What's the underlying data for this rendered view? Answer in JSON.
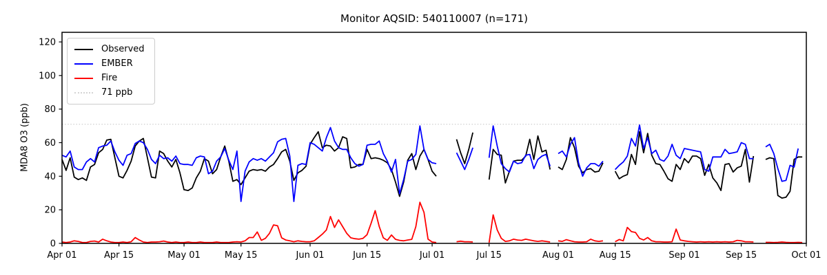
{
  "title": "Monitor AQSID: 540110007 (n=171)",
  "legend": {
    "items": [
      {
        "label": "Observed",
        "color": "#000000",
        "style": "solid"
      },
      {
        "label": "EMBER",
        "color": "#0000ff",
        "style": "solid"
      },
      {
        "label": "Fire",
        "color": "#ff0000",
        "style": "solid"
      },
      {
        "label": "71 ppb",
        "color": "#d3d3d3",
        "style": "dotted"
      }
    ]
  },
  "chart_data": {
    "type": "line",
    "title": "Monitor AQSID: 540110007 (n=171)",
    "xlabel": "",
    "ylabel": "MDA8 O3 (ppb)",
    "ylim": [
      0,
      126
    ],
    "y_ticks": [
      0,
      20,
      40,
      60,
      80,
      100,
      120
    ],
    "x_start_date": "Apr 01",
    "x_end_date": "Sep 30",
    "n_days": 183,
    "n_points": 171,
    "grid": false,
    "legend_position": "upper left",
    "x_ticks": [
      {
        "day": 0,
        "label": "Apr 01"
      },
      {
        "day": 14,
        "label": "Apr 15"
      },
      {
        "day": 30,
        "label": "May 01"
      },
      {
        "day": 44,
        "label": "May 15"
      },
      {
        "day": 61,
        "label": "Jun 01"
      },
      {
        "day": 75,
        "label": "Jun 15"
      },
      {
        "day": 91,
        "label": "Jul 01"
      },
      {
        "day": 105,
        "label": "Jul 15"
      },
      {
        "day": 122,
        "label": "Aug 01"
      },
      {
        "day": 136,
        "label": "Aug 15"
      },
      {
        "day": 153,
        "label": "Sep 01"
      },
      {
        "day": 167,
        "label": "Sep 15"
      },
      {
        "day": 183,
        "label": "Oct 01"
      }
    ],
    "threshold": {
      "value": 71,
      "label": "71 ppb",
      "color": "#d3d3d3",
      "style": "dotted"
    },
    "missing_days": [
      "Jul 03",
      "Jul 04",
      "Jul 05",
      "Jul 06",
      "Jul 12",
      "Jul 13",
      "Jul 14",
      "Jul 31",
      "Aug 13",
      "Aug 14",
      "Sep 19",
      "Sep 20"
    ],
    "series": [
      {
        "name": "Observed",
        "color": "#000000",
        "values": [
          50,
          43.5,
          51,
          39.5,
          38,
          39,
          37.5,
          45.5,
          47,
          54,
          56,
          61.5,
          62,
          51,
          40,
          39,
          43.5,
          49,
          58,
          61,
          62.5,
          51,
          39.5,
          39,
          55,
          53.5,
          49,
          45.5,
          50,
          42,
          32,
          31.5,
          33,
          39,
          43,
          50.5,
          49,
          41.5,
          44,
          51.5,
          58,
          49,
          37,
          38,
          35,
          39,
          43,
          44,
          43.5,
          44,
          43,
          45.5,
          47,
          50.5,
          54.5,
          56,
          49,
          37.5,
          42,
          43.5,
          46,
          59,
          63,
          66.5,
          57,
          58.5,
          58,
          55,
          57,
          63.5,
          62.5,
          45,
          45.5,
          47,
          47,
          56,
          50.5,
          51,
          50.5,
          49.5,
          48,
          44,
          36.5,
          28,
          36.5,
          49.5,
          53.5,
          44,
          52,
          56,
          50,
          43,
          40,
          null,
          null,
          null,
          null,
          62,
          54,
          47.5,
          56,
          66,
          null,
          null,
          null,
          38,
          56,
          53,
          52.5,
          36,
          43,
          49,
          49.5,
          49.5,
          52,
          62,
          50,
          64,
          54.5,
          55.5,
          44,
          null,
          45.5,
          44,
          50,
          63,
          57,
          46,
          42,
          44,
          44.5,
          42.5,
          43,
          48,
          null,
          null,
          43,
          38.5,
          40,
          41,
          53,
          47,
          66.5,
          54,
          65.5,
          52.5,
          47.5,
          47,
          43,
          38.5,
          37,
          47,
          44,
          50.5,
          48,
          52,
          52,
          50.5,
          40.5,
          47,
          39,
          36,
          31.5,
          47,
          47.5,
          42.5,
          45,
          46,
          56,
          36.5,
          52,
          null,
          null,
          50,
          51,
          50.5,
          28.5,
          27,
          27.5,
          31,
          50,
          51.5,
          51.5
        ]
      },
      {
        "name": "EMBER",
        "color": "#0000ff",
        "values": [
          52.5,
          51.5,
          55,
          45.5,
          44,
          44,
          48.5,
          50.5,
          48.5,
          57,
          58,
          58.5,
          61,
          54.5,
          49.5,
          46.5,
          52.5,
          53.5,
          59.5,
          61,
          60,
          56,
          50,
          47.5,
          52.5,
          50.5,
          51,
          49,
          52,
          47.5,
          47,
          47,
          46.5,
          51,
          52,
          51.5,
          41.5,
          43,
          49,
          51.5,
          56.5,
          49.5,
          44,
          55,
          25,
          43,
          48.5,
          50.5,
          49.5,
          50.5,
          49,
          51.5,
          54,
          60.5,
          62,
          62.5,
          52,
          25,
          46.5,
          47.5,
          47,
          60,
          59,
          57,
          55,
          63,
          69,
          61,
          57,
          56,
          56,
          51,
          47.5,
          46,
          47,
          58.5,
          59,
          59,
          61,
          53.5,
          49,
          42.5,
          50,
          29.5,
          38,
          49,
          50,
          53,
          70,
          56,
          50,
          48,
          47.5,
          null,
          null,
          null,
          null,
          54,
          49,
          44,
          50,
          57,
          null,
          null,
          null,
          51,
          70,
          58,
          47.5,
          44.5,
          42.5,
          49,
          47.5,
          48,
          52.5,
          53,
          44.5,
          50,
          52,
          53,
          46,
          null,
          53.5,
          55,
          51.5,
          59,
          63,
          48,
          40,
          45,
          47.5,
          47.5,
          46,
          49,
          null,
          null,
          44,
          46.5,
          48.5,
          52,
          62.5,
          58,
          70.5,
          56.5,
          63,
          53.5,
          55.5,
          50,
          49,
          52,
          59,
          52.5,
          50.5,
          56.5,
          56,
          55.5,
          55,
          54.5,
          44,
          43,
          51.5,
          51.5,
          51.5,
          56,
          53.5,
          54,
          54.5,
          60,
          59,
          50.5,
          50.5,
          null,
          null,
          57.5,
          59,
          53.5,
          44.5,
          37,
          37.5,
          46.5,
          45.5,
          56.5,
          null
        ]
      },
      {
        "name": "Fire",
        "color": "#ff0000",
        "values": [
          0.8,
          0.5,
          0.8,
          1.5,
          1.2,
          0.5,
          0.5,
          1.2,
          1.4,
          0.8,
          2.5,
          1.5,
          0.8,
          0.5,
          0.5,
          0.8,
          0.5,
          1,
          3.5,
          2,
          0.8,
          0.5,
          0.8,
          0.8,
          1,
          1.4,
          0.8,
          0.5,
          0.8,
          0.5,
          0.5,
          0.8,
          0.5,
          0.5,
          0.8,
          0.5,
          0.5,
          0.5,
          0.8,
          0.5,
          0.5,
          0.5,
          0.8,
          1,
          0.8,
          1.5,
          3.5,
          3.5,
          6.8,
          1.8,
          3,
          6,
          11,
          10.5,
          3.3,
          2,
          1.5,
          1,
          1.5,
          1.2,
          1,
          1,
          1.5,
          3.5,
          5.5,
          8,
          16,
          9.5,
          14,
          10,
          6,
          3.3,
          2.8,
          2.5,
          3,
          5.2,
          12,
          19.5,
          10,
          3.3,
          1.8,
          5,
          2.4,
          1.8,
          1.5,
          2,
          2.4,
          10,
          24.5,
          18.5,
          2.5,
          0.8,
          0.5,
          null,
          null,
          null,
          null,
          1,
          1.3,
          1,
          1,
          0.8,
          null,
          null,
          null,
          0.4,
          17,
          8,
          3,
          1.2,
          1.5,
          2.5,
          2,
          1.8,
          2.5,
          2,
          1.5,
          1.2,
          1.5,
          1.2,
          0.8,
          null,
          1.5,
          1.2,
          2.2,
          1.5,
          1,
          0.8,
          0.8,
          1,
          2.5,
          1.5,
          1.2,
          1.5,
          null,
          null,
          1,
          2.3,
          1.5,
          9.5,
          7,
          6.5,
          3,
          2,
          3.5,
          1.5,
          1,
          1,
          0.8,
          0.8,
          1,
          8.5,
          2,
          1.5,
          1.2,
          1,
          0.8,
          1,
          0.8,
          1,
          0.8,
          1,
          0.8,
          1,
          0.8,
          1,
          1.8,
          1.5,
          1,
          1,
          0.8,
          null,
          null,
          0.6,
          0.6,
          0.5,
          0.6,
          0.8,
          0.6,
          0.5,
          0.5,
          0.6,
          0.5
        ]
      }
    ]
  }
}
